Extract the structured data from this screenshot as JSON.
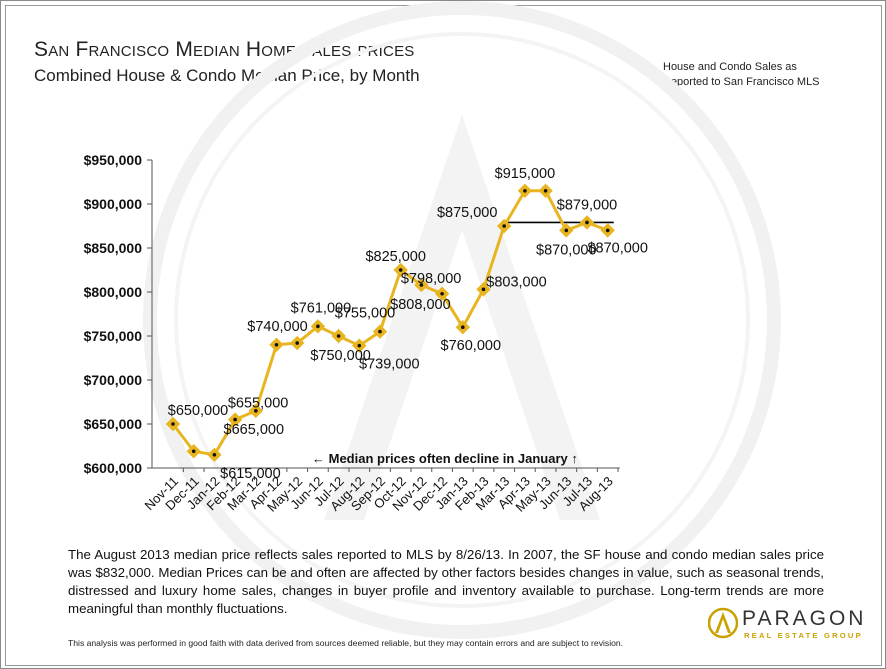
{
  "title": "San Francisco Median Home sales prices",
  "subtitle": "Combined House & Condo Median Price, by Month",
  "side_note": [
    "House and Condo Sales as",
    "Reported to San Francisco MLS"
  ],
  "annotation": "← Median prices often decline in January ↑",
  "footnote": "The August 2013 median price reflects sales reported to MLS by 8/26/13. In 2007, the SF house and condo median sales price was $832,000. Median Prices can be and often are affected by other factors besides changes in value, such as seasonal trends, distressed and luxury home sales, changes in buyer profile and inventory available to purchase. Long-term trends are more meaningful than monthly fluctuations.",
  "disclaimer": "This analysis was performed in good faith with data derived from sources deemed reliable, but they may contain errors and are subject to revision.",
  "logo": {
    "name": "PARAGON",
    "tagline": "REAL ESTATE GROUP"
  },
  "colors": {
    "line": "#e8b520",
    "marker_center": "#111111",
    "reference_line": "#000000",
    "watermark": "#f2f2f2"
  },
  "chart_data": {
    "type": "line",
    "categories": [
      "Nov-11",
      "Dec-11",
      "Jan-12",
      "Feb-12",
      "Mar-12",
      "Apr-12",
      "May-12",
      "Jun-12",
      "Jul-12",
      "Aug-12",
      "Sep-12",
      "Oct-12",
      "Nov-12",
      "Dec-12",
      "Jan-13",
      "Feb-13",
      "Mar-13",
      "Apr-13",
      "May-13",
      "Jun-13",
      "Jul-13",
      "Aug-13"
    ],
    "values": [
      650000,
      619000,
      615000,
      655000,
      665000,
      740000,
      742000,
      761000,
      750000,
      739000,
      755000,
      825000,
      808000,
      798000,
      760000,
      803000,
      875000,
      915000,
      915000,
      870000,
      879000,
      870000
    ],
    "labels": [
      "$650,000",
      "",
      "$615,000",
      "$655,000",
      "$665,000",
      "$740,000",
      "",
      "$761,000",
      "$750,000",
      "$739,000",
      "$755,000",
      "$825,000",
      "$808,000",
      "$798,000",
      "$760,000",
      "$803,000",
      "$875,000",
      "$915,000",
      "",
      "$870,000",
      "$879,000",
      "$870,000"
    ],
    "yticks": [
      "$600,000",
      "$650,000",
      "$700,000",
      "$750,000",
      "$800,000",
      "$850,000",
      "$900,000",
      "$950,000"
    ],
    "ylim": [
      600000,
      950000
    ],
    "reference_line": {
      "value": 879000,
      "from": "Mar-13",
      "to": "Aug-13"
    },
    "grid": false,
    "legend": "none"
  }
}
